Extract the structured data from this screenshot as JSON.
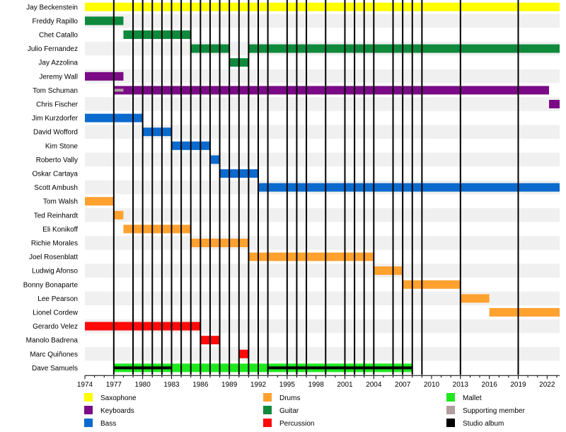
{
  "chart_data": {
    "type": "timeline",
    "x_range": [
      1974,
      2023.3
    ],
    "x_ticks": [
      1974,
      1977,
      1980,
      1983,
      1986,
      1989,
      1992,
      1995,
      1998,
      2001,
      2004,
      2007,
      2010,
      2013,
      2016,
      2019,
      2022
    ],
    "grid": true,
    "legend_position": "bottom",
    "colors": {
      "Saxophone": "#FFFF00",
      "Keyboards": "#7A0A85",
      "Bass": "#0A6ACD",
      "Drums": "#FFA12F",
      "Guitar": "#0F8A3C",
      "Percussion": "#FF0A0A",
      "Mallet": "#1FE81F",
      "Supporting member": "#B29E9E",
      "Studio album": "#000000"
    },
    "members": [
      {
        "name": "Jay Beckenstein",
        "bars": [
          {
            "start": 1974,
            "end": 2023.3,
            "role": "Saxophone"
          }
        ]
      },
      {
        "name": "Freddy Rapillo",
        "bars": [
          {
            "start": 1974,
            "end": 1978,
            "role": "Guitar"
          }
        ]
      },
      {
        "name": "Chet Catallo",
        "bars": [
          {
            "start": 1978,
            "end": 1985,
            "role": "Guitar"
          }
        ]
      },
      {
        "name": "Julio Fernandez",
        "bars": [
          {
            "start": 1985,
            "end": 1989,
            "role": "Guitar"
          },
          {
            "start": 1991,
            "end": 2023.3,
            "role": "Guitar"
          }
        ]
      },
      {
        "name": "Jay Azzolina",
        "bars": [
          {
            "start": 1989,
            "end": 1991,
            "role": "Guitar"
          }
        ]
      },
      {
        "name": "Jeremy Wall",
        "bars": [
          {
            "start": 1974,
            "end": 1978,
            "role": "Keyboards"
          }
        ]
      },
      {
        "name": "Tom Schuman",
        "bars": [
          {
            "start": 1977,
            "end": 2022.2,
            "role": "Keyboards"
          },
          {
            "start": 1977,
            "end": 1978,
            "role": "Supporting member",
            "thin": true
          }
        ]
      },
      {
        "name": "Chris Fischer",
        "bars": [
          {
            "start": 2022.2,
            "end": 2023.3,
            "role": "Keyboards"
          }
        ]
      },
      {
        "name": "Jim Kurzdorfer",
        "bars": [
          {
            "start": 1974,
            "end": 1980,
            "role": "Bass"
          }
        ]
      },
      {
        "name": "David Wofford",
        "bars": [
          {
            "start": 1980,
            "end": 1983,
            "role": "Bass"
          }
        ]
      },
      {
        "name": "Kim Stone",
        "bars": [
          {
            "start": 1983,
            "end": 1987,
            "role": "Bass"
          }
        ]
      },
      {
        "name": "Roberto Vally",
        "bars": [
          {
            "start": 1987,
            "end": 1988,
            "role": "Bass"
          }
        ]
      },
      {
        "name": "Oskar Cartaya",
        "bars": [
          {
            "start": 1988,
            "end": 1992,
            "role": "Bass"
          }
        ]
      },
      {
        "name": "Scott Ambush",
        "bars": [
          {
            "start": 1992,
            "end": 2023.3,
            "role": "Bass"
          }
        ]
      },
      {
        "name": "Tom Walsh",
        "bars": [
          {
            "start": 1974,
            "end": 1977,
            "role": "Drums"
          }
        ]
      },
      {
        "name": "Ted Reinhardt",
        "bars": [
          {
            "start": 1977,
            "end": 1978,
            "role": "Drums"
          }
        ]
      },
      {
        "name": "Eli Konikoff",
        "bars": [
          {
            "start": 1978,
            "end": 1985,
            "role": "Drums"
          }
        ]
      },
      {
        "name": "Richie Morales",
        "bars": [
          {
            "start": 1985,
            "end": 1991,
            "role": "Drums"
          }
        ]
      },
      {
        "name": "Joel Rosenblatt",
        "bars": [
          {
            "start": 1991,
            "end": 2004,
            "role": "Drums"
          }
        ]
      },
      {
        "name": "Ludwig Afonso",
        "bars": [
          {
            "start": 2004,
            "end": 2007,
            "role": "Drums"
          }
        ]
      },
      {
        "name": "Bonny Bonaparte",
        "bars": [
          {
            "start": 2007,
            "end": 2013,
            "role": "Drums"
          }
        ]
      },
      {
        "name": "Lee Pearson",
        "bars": [
          {
            "start": 2013,
            "end": 2016,
            "role": "Drums"
          }
        ]
      },
      {
        "name": "Lionel Cordew",
        "bars": [
          {
            "start": 2016,
            "end": 2023.3,
            "role": "Drums"
          }
        ]
      },
      {
        "name": "Gerardo Velez",
        "bars": [
          {
            "start": 1974,
            "end": 1986,
            "role": "Percussion"
          }
        ]
      },
      {
        "name": "Manolo Badrena",
        "bars": [
          {
            "start": 1986,
            "end": 1988,
            "role": "Percussion"
          }
        ]
      },
      {
        "name": "Marc Quiñones",
        "bars": [
          {
            "start": 1990,
            "end": 1991,
            "role": "Percussion"
          }
        ]
      },
      {
        "name": "Dave Samuels",
        "bars": [
          {
            "start": 1977,
            "end": 2008,
            "role": "Mallet"
          },
          {
            "start": 1977,
            "end": 1983,
            "role": "Studio album",
            "thin": true
          },
          {
            "start": 1993,
            "end": 2008,
            "role": "Studio album",
            "thin": true
          }
        ]
      }
    ],
    "album_years": [
      1977,
      1979,
      1980,
      1981,
      1982,
      1983,
      1984,
      1985,
      1986,
      1987,
      1988,
      1989,
      1990,
      1991,
      1992,
      1993,
      1995,
      1996,
      1997,
      1999,
      2001,
      2002,
      2003,
      2004,
      2006,
      2007,
      2008,
      2009,
      2013,
      2019
    ],
    "legend": [
      {
        "label": "Saxophone",
        "color": "#FFFF00"
      },
      {
        "label": "Keyboards",
        "color": "#7A0A85"
      },
      {
        "label": "Bass",
        "color": "#0A6ACD"
      },
      {
        "label": "Drums",
        "color": "#FFA12F"
      },
      {
        "label": "Guitar",
        "color": "#0F8A3C"
      },
      {
        "label": "Percussion",
        "color": "#FF0A0A"
      },
      {
        "label": "Mallet",
        "color": "#1FE81F"
      },
      {
        "label": "Supporting member",
        "color": "#B29E9E"
      },
      {
        "label": "Studio album",
        "color": "#000000"
      }
    ]
  }
}
